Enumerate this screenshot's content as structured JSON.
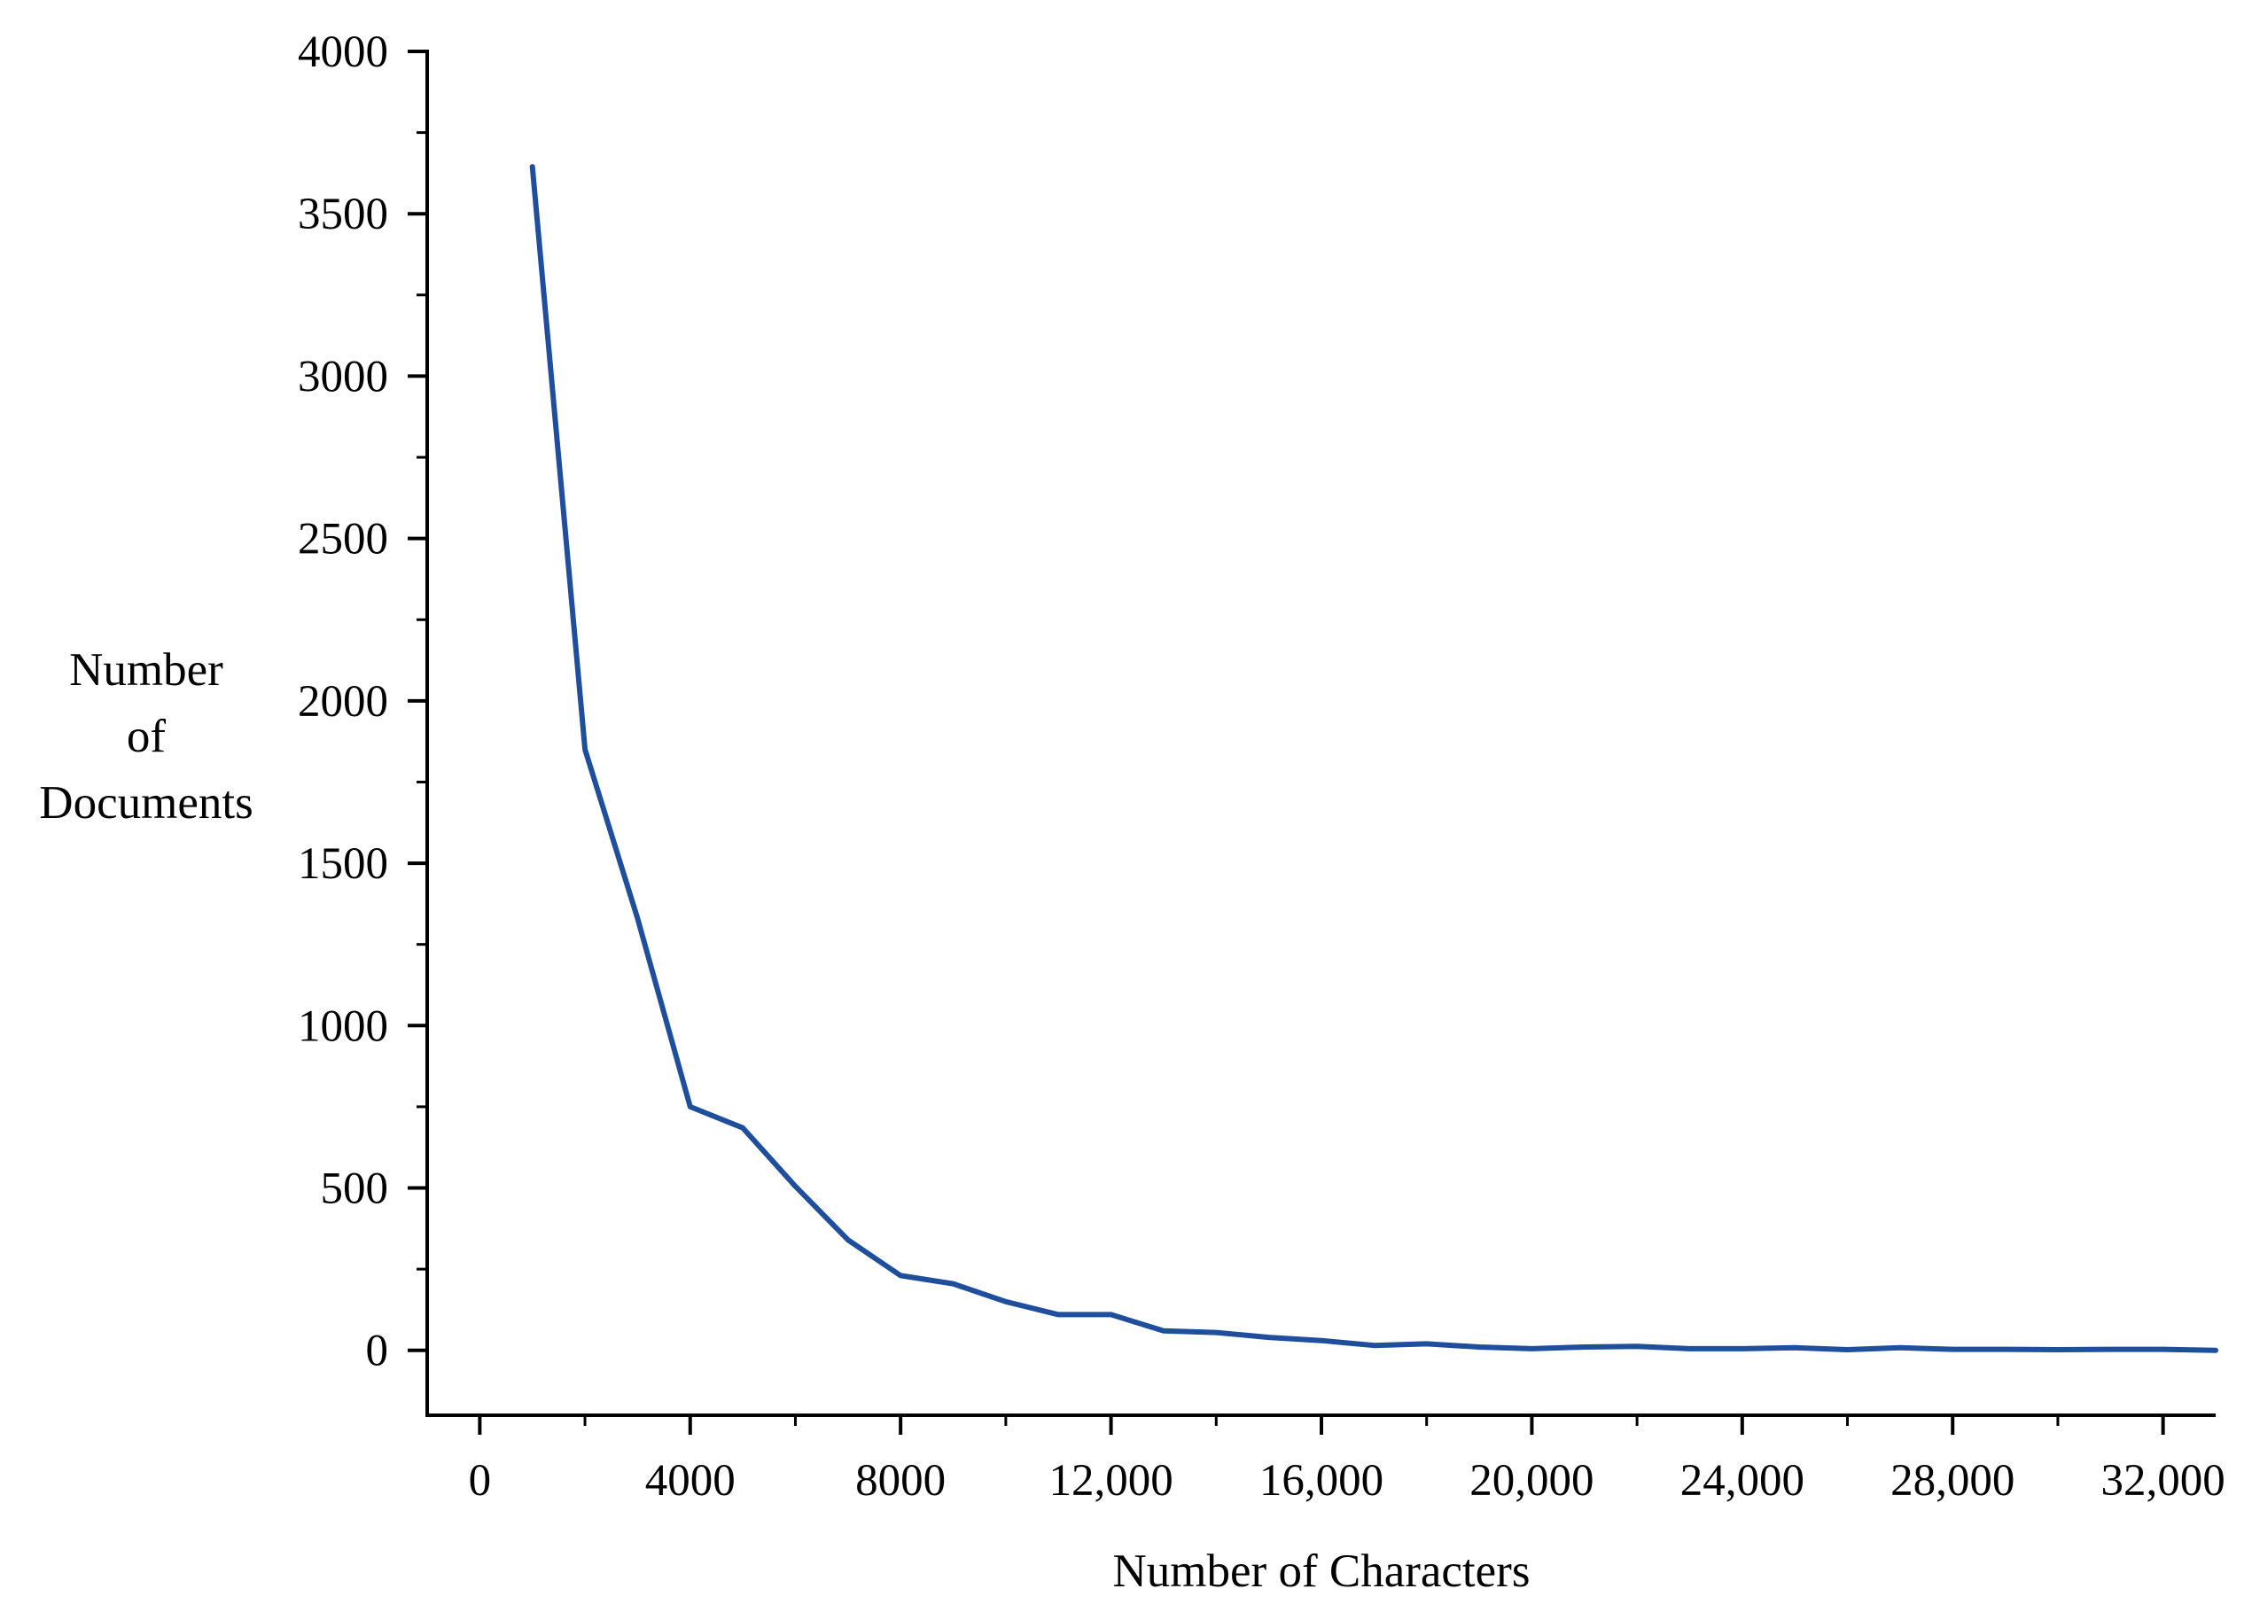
{
  "chart_data": {
    "type": "line",
    "title": "",
    "xlabel": "Number of Characters",
    "ylabel_lines": [
      "Number",
      "of",
      "Documents"
    ],
    "xlim": [
      -1000,
      33000
    ],
    "ylim": [
      -200,
      4000
    ],
    "x_ticks": [
      0,
      4000,
      8000,
      12000,
      16000,
      20000,
      24000,
      28000,
      32000
    ],
    "x_tick_labels": [
      "0",
      "4000",
      "8000",
      "12,000",
      "16,000",
      "20,000",
      "24,000",
      "28,000",
      "32,000"
    ],
    "x_minor_ticks": [
      2000,
      6000,
      10000,
      14000,
      18000,
      22000,
      26000,
      30000
    ],
    "y_ticks": [
      0,
      500,
      1000,
      1500,
      2000,
      2500,
      3000,
      3500,
      4000
    ],
    "y_tick_labels": [
      "0",
      "500",
      "1000",
      "1500",
      "2000",
      "2500",
      "3000",
      "3500",
      "4000"
    ],
    "y_minor_ticks": [
      250,
      750,
      1250,
      1750,
      2250,
      2750,
      3250,
      3750
    ],
    "grid": false,
    "series": [
      {
        "color": "#1f4e9c",
        "x": [
          1000,
          2000,
          3000,
          4000,
          5000,
          6000,
          7000,
          8000,
          9000,
          10000,
          11000,
          12000,
          13000,
          14000,
          15000,
          16000,
          17000,
          18000,
          19000,
          20000,
          21000,
          22000,
          23000,
          24000,
          25000,
          26000,
          27000,
          28000,
          29000,
          30000,
          31000,
          32000,
          33000
        ],
        "y": [
          3645,
          1850,
          1330,
          750,
          685,
          505,
          340,
          230,
          205,
          150,
          110,
          110,
          60,
          55,
          40,
          30,
          15,
          20,
          10,
          5,
          10,
          12,
          5,
          5,
          8,
          2,
          8,
          3,
          3,
          2,
          3,
          3,
          0
        ]
      }
    ]
  }
}
